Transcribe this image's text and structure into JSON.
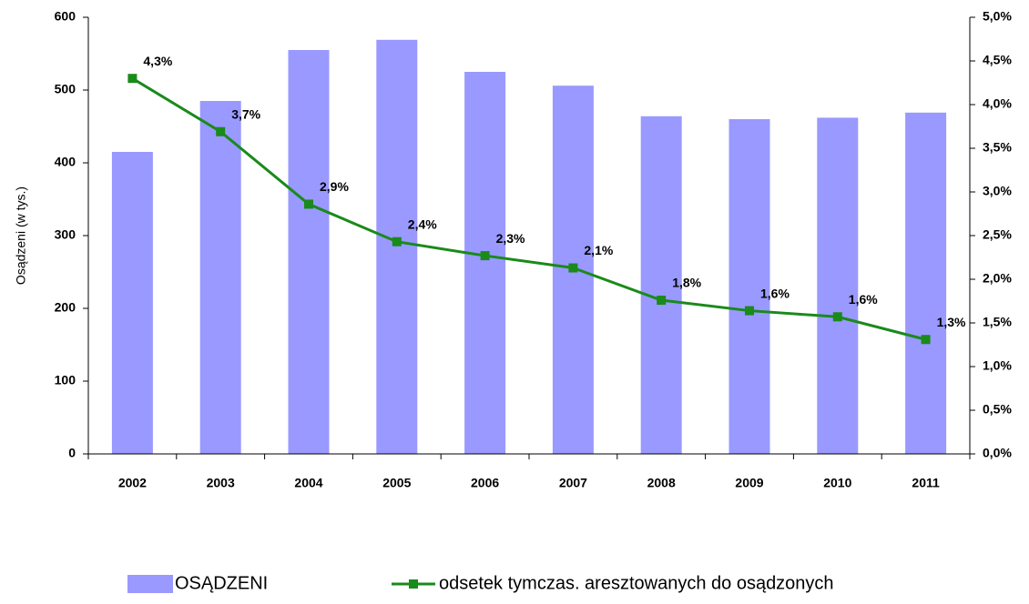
{
  "chart_data": {
    "type": "bar",
    "categories": [
      "2002",
      "2003",
      "2004",
      "2005",
      "2006",
      "2007",
      "2008",
      "2009",
      "2010",
      "2011"
    ],
    "ylabel": "Osądzeni (w tys.)",
    "series": [
      {
        "name": "OSĄDZENI",
        "type": "bar",
        "color": "#9999ff",
        "values": [
          415,
          485,
          555,
          569,
          525,
          506,
          464,
          460,
          462,
          469
        ]
      },
      {
        "name": "odsetek tymczas. aresztowanych do osądzonych",
        "type": "line",
        "axis": "y2",
        "color": "#1a8a1a",
        "values": [
          4.3,
          3.69,
          2.86,
          2.43,
          2.27,
          2.13,
          1.76,
          1.64,
          1.57,
          1.31
        ],
        "value_labels": [
          "4,3%",
          "3,7%",
          "2,9%",
          "2,4%",
          "2,3%",
          "2,1%",
          "1,8%",
          "1,6%",
          "1,6%",
          "1,3%"
        ]
      }
    ],
    "ylim": [
      0,
      600
    ],
    "yticks": [
      0,
      100,
      200,
      300,
      400,
      500,
      600
    ],
    "y2lim": [
      0,
      5
    ],
    "y2ticks": [
      {
        "value": 0,
        "label": "0,0%"
      },
      {
        "value": 0.5,
        "label": "0,5%"
      },
      {
        "value": 1,
        "label": "1,0%"
      },
      {
        "value": 1.5,
        "label": "1,5%"
      },
      {
        "value": 2,
        "label": "2,0%"
      },
      {
        "value": 2.5,
        "label": "2,5%"
      },
      {
        "value": 3,
        "label": "3,0%"
      },
      {
        "value": 3.5,
        "label": "3,5%"
      },
      {
        "value": 4,
        "label": "4,0%"
      },
      {
        "value": 4.5,
        "label": "4,5%"
      },
      {
        "value": 5,
        "label": "5,0%"
      }
    ],
    "legend": "bottom"
  }
}
